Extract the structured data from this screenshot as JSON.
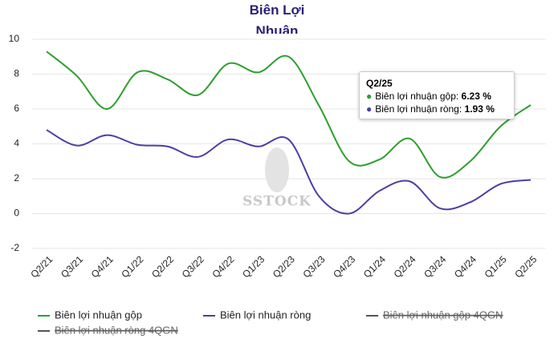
{
  "chart_data": {
    "type": "line",
    "title": "Biên Lợi Nhuận",
    "categories": [
      "Q2/21",
      "Q3/21",
      "Q4/21",
      "Q1/22",
      "Q2/22",
      "Q3/22",
      "Q4/22",
      "Q1/23",
      "Q2/23",
      "Q3/23",
      "Q4/23",
      "Q1/24",
      "Q2/24",
      "Q3/24",
      "Q4/24",
      "Q1/25",
      "Q2/25"
    ],
    "series": [
      {
        "name": "Biên lợi nhuận gộp",
        "color": "#2ca02c",
        "values": [
          9.3,
          7.9,
          6.0,
          8.1,
          7.7,
          6.8,
          8.6,
          8.1,
          9.0,
          6.2,
          3.0,
          3.1,
          4.3,
          2.1,
          3.0,
          5.0,
          6.23
        ]
      },
      {
        "name": "Biên lợi nhuận ròng",
        "color": "#4b3ea6",
        "values": [
          4.8,
          3.9,
          4.5,
          3.95,
          3.85,
          3.25,
          4.25,
          3.85,
          4.25,
          1.0,
          0.0,
          1.3,
          1.85,
          0.3,
          0.65,
          1.7,
          1.93
        ]
      }
    ],
    "hidden_series": [
      {
        "name": "Biên lợi nhuận gộp 4QGN",
        "color": "#555555"
      },
      {
        "name": "Biên lợi nhuận ròng 4QGN",
        "color": "#555555"
      }
    ],
    "ylim": [
      -2,
      10
    ],
    "yticks": [
      -2,
      0,
      2,
      4,
      6,
      8,
      10
    ],
    "grid": true,
    "watermark": "SSTOCK",
    "tooltip": {
      "title": "Q2/25",
      "lines": [
        {
          "name": "Biên lợi nhuận gộp:",
          "value": "6.23 %",
          "color": "#2ca02c"
        },
        {
          "name": "Biên lợi nhuận ròng:",
          "value": "1.93 %",
          "color": "#4b3ea6"
        }
      ]
    }
  }
}
